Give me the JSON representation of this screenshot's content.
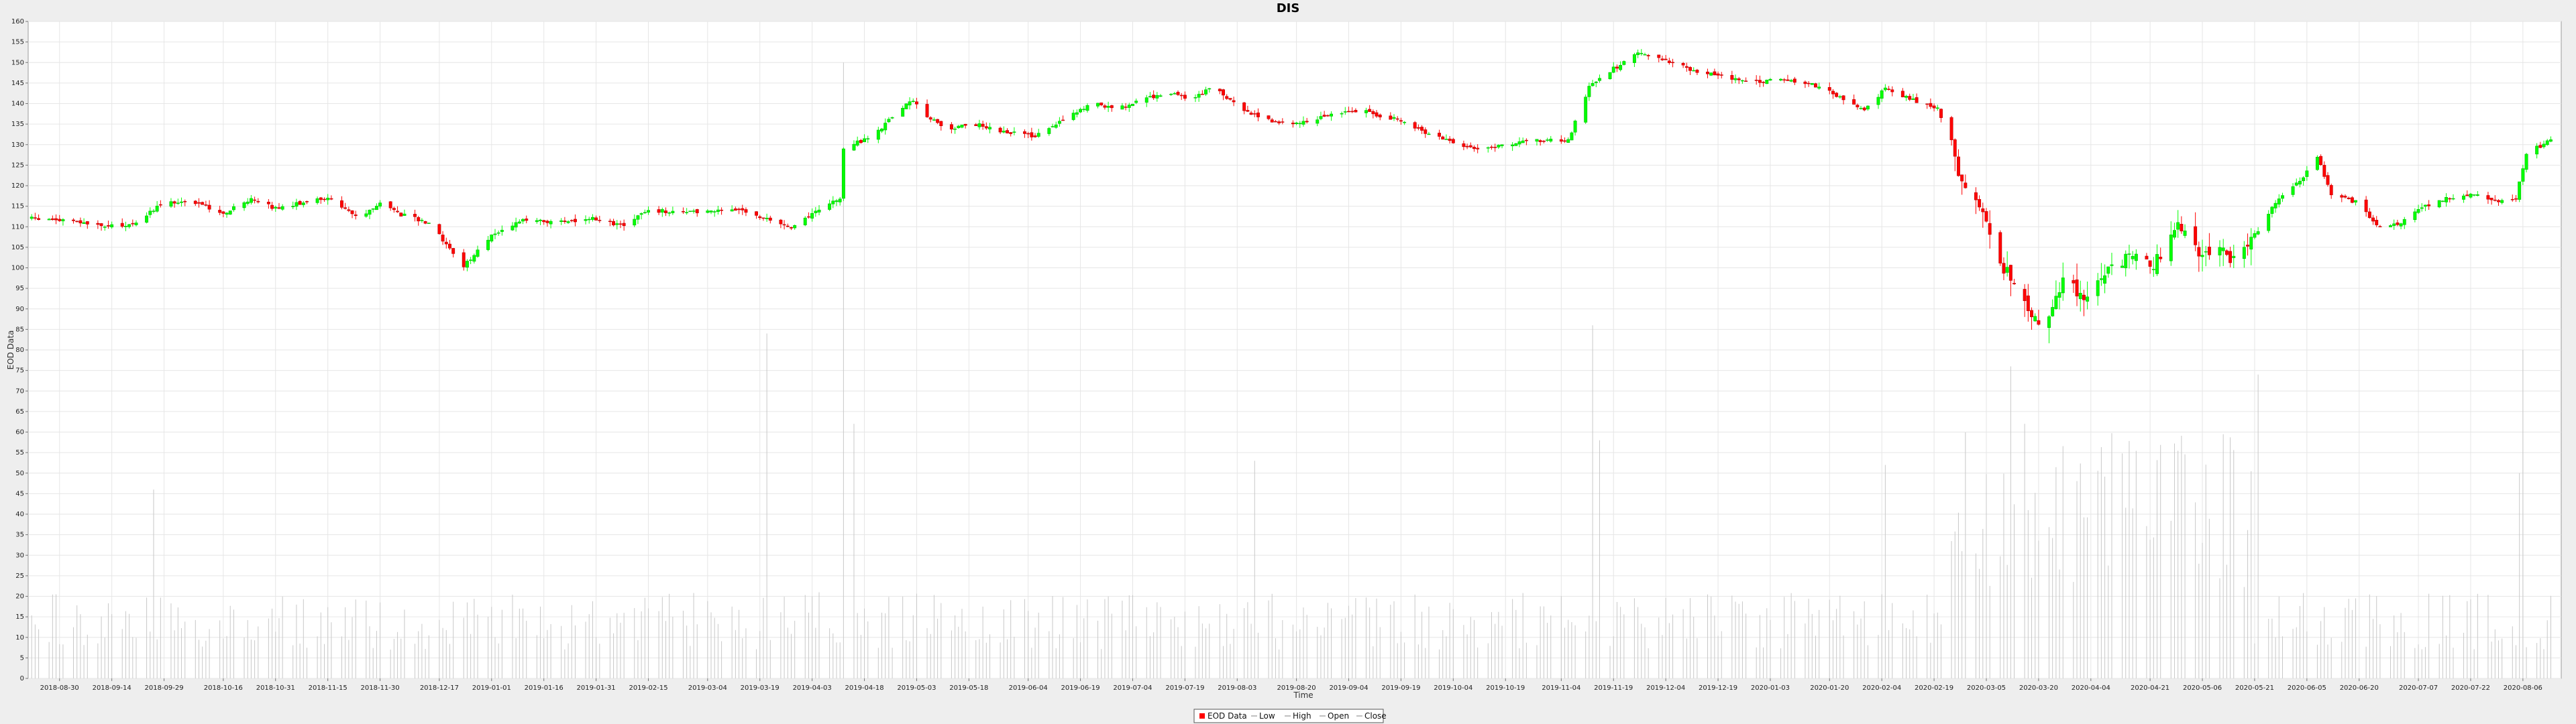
{
  "chart_data": {
    "type": "candlestick",
    "title": "DIS",
    "xlabel": "Time",
    "ylabel": "EOD Data",
    "ylim": [
      0,
      160
    ],
    "y_ticks": [
      0,
      5,
      10,
      15,
      20,
      25,
      30,
      35,
      40,
      45,
      50,
      55,
      60,
      65,
      70,
      75,
      80,
      85,
      90,
      95,
      100,
      105,
      110,
      115,
      120,
      125,
      130,
      135,
      140,
      145,
      150,
      155,
      160
    ],
    "xlim": [
      "2018-08-21",
      "2020-08-17"
    ],
    "x_ticks": [
      "2018-08-30",
      "2018-09-14",
      "2018-09-29",
      "2018-10-16",
      "2018-10-31",
      "2018-11-15",
      "2018-11-30",
      "2018-12-17",
      "2019-01-01",
      "2019-01-16",
      "2019-01-31",
      "2019-02-15",
      "2019-03-04",
      "2019-03-19",
      "2019-04-03",
      "2019-04-18",
      "2019-05-03",
      "2019-05-18",
      "2019-06-04",
      "2019-06-19",
      "2019-07-04",
      "2019-07-19",
      "2019-08-03",
      "2019-08-20",
      "2019-09-04",
      "2019-09-19",
      "2019-10-04",
      "2019-10-19",
      "2019-11-04",
      "2019-11-19",
      "2019-12-04",
      "2019-12-19",
      "2020-01-03",
      "2020-01-20",
      "2020-02-04",
      "2020-02-19",
      "2020-03-05",
      "2020-03-20",
      "2020-04-04",
      "2020-04-21",
      "2020-05-06",
      "2020-05-21",
      "2020-06-05",
      "2020-06-20",
      "2020-07-07",
      "2020-07-22",
      "2020-08-06"
    ],
    "close_anchors": [
      [
        "2018-08-22",
        112
      ],
      [
        "2018-09-01",
        111.5
      ],
      [
        "2018-09-12",
        110
      ],
      [
        "2018-09-20",
        110.5
      ],
      [
        "2018-09-29",
        116
      ],
      [
        "2018-10-08",
        116
      ],
      [
        "2018-10-16",
        113
      ],
      [
        "2018-10-24",
        117
      ],
      [
        "2018-10-31",
        114.5
      ],
      [
        "2018-11-15",
        117
      ],
      [
        "2018-11-24",
        112
      ],
      [
        "2018-11-30",
        116
      ],
      [
        "2018-12-06",
        113
      ],
      [
        "2018-12-14",
        111
      ],
      [
        "2018-12-24",
        100.5
      ],
      [
        "2019-01-01",
        108
      ],
      [
        "2019-01-10",
        111.5
      ],
      [
        "2019-01-20",
        111
      ],
      [
        "2019-01-31",
        112
      ],
      [
        "2019-02-08",
        110
      ],
      [
        "2019-02-15",
        114
      ],
      [
        "2019-02-28",
        113.5
      ],
      [
        "2019-03-14",
        114
      ],
      [
        "2019-03-20",
        112
      ],
      [
        "2019-03-28",
        110
      ],
      [
        "2019-04-05",
        114
      ],
      [
        "2019-04-11",
        117
      ],
      [
        "2019-04-12",
        129
      ],
      [
        "2019-04-20",
        132
      ],
      [
        "2019-04-28",
        138
      ],
      [
        "2019-05-02",
        141
      ],
      [
        "2019-05-07",
        136
      ],
      [
        "2019-05-13",
        134
      ],
      [
        "2019-05-20",
        135
      ],
      [
        "2019-05-29",
        133
      ],
      [
        "2019-06-06",
        132
      ],
      [
        "2019-06-14",
        136
      ],
      [
        "2019-06-22",
        140
      ],
      [
        "2019-06-30",
        139
      ],
      [
        "2019-07-08",
        141
      ],
      [
        "2019-07-14",
        143
      ],
      [
        "2019-07-21",
        141
      ],
      [
        "2019-07-27",
        144
      ],
      [
        "2019-08-02",
        140
      ],
      [
        "2019-08-08",
        137
      ],
      [
        "2019-08-16",
        135
      ],
      [
        "2019-08-24",
        136
      ],
      [
        "2019-09-01",
        138
      ],
      [
        "2019-09-09",
        138
      ],
      [
        "2019-09-18",
        136
      ],
      [
        "2019-09-26",
        133
      ],
      [
        "2019-10-06",
        130
      ],
      [
        "2019-10-12",
        129
      ],
      [
        "2019-10-20",
        130
      ],
      [
        "2019-10-28",
        131
      ],
      [
        "2019-11-06",
        131
      ],
      [
        "2019-11-12",
        144
      ],
      [
        "2019-11-18",
        148
      ],
      [
        "2019-11-26",
        152
      ],
      [
        "2019-12-03",
        151
      ],
      [
        "2019-12-12",
        148
      ],
      [
        "2019-12-20",
        147
      ],
      [
        "2019-12-28",
        145
      ],
      [
        "2020-01-06",
        146
      ],
      [
        "2020-01-14",
        145
      ],
      [
        "2020-01-22",
        142
      ],
      [
        "2020-01-30",
        138
      ],
      [
        "2020-02-05",
        144
      ],
      [
        "2020-02-12",
        141
      ],
      [
        "2020-02-20",
        139
      ],
      [
        "2020-02-24",
        130
      ],
      [
        "2020-02-28",
        118
      ],
      [
        "2020-03-05",
        112
      ],
      [
        "2020-03-10",
        100
      ],
      [
        "2020-03-16",
        92
      ],
      [
        "2020-03-19",
        88
      ],
      [
        "2020-03-23",
        87
      ],
      [
        "2020-03-27",
        97
      ],
      [
        "2020-04-02",
        93
      ],
      [
        "2020-04-09",
        100
      ],
      [
        "2020-04-16",
        103
      ],
      [
        "2020-04-22",
        101
      ],
      [
        "2020-04-29",
        110
      ],
      [
        "2020-05-05",
        103
      ],
      [
        "2020-05-11",
        104
      ],
      [
        "2020-05-15",
        102
      ],
      [
        "2020-05-21",
        108
      ],
      [
        "2020-05-28",
        117
      ],
      [
        "2020-06-04",
        122
      ],
      [
        "2020-06-08",
        127
      ],
      [
        "2020-06-12",
        118
      ],
      [
        "2020-06-19",
        116
      ],
      [
        "2020-06-26",
        110
      ],
      [
        "2020-07-02",
        111
      ],
      [
        "2020-07-09",
        115
      ],
      [
        "2020-07-15",
        117
      ],
      [
        "2020-07-22",
        118
      ],
      [
        "2020-07-29",
        116
      ],
      [
        "2020-08-04",
        117
      ],
      [
        "2020-08-07",
        128
      ],
      [
        "2020-08-14",
        131
      ]
    ],
    "volume_spikes": [
      [
        "2018-09-26",
        46
      ],
      [
        "2019-03-21",
        84
      ],
      [
        "2019-03-24",
        66
      ],
      [
        "2019-04-12",
        150
      ],
      [
        "2019-04-15",
        62
      ],
      [
        "2019-08-08",
        53
      ],
      [
        "2019-11-13",
        86
      ],
      [
        "2019-11-15",
        58
      ],
      [
        "2020-02-05",
        52
      ],
      [
        "2020-03-12",
        76
      ],
      [
        "2020-03-16",
        62
      ],
      [
        "2020-05-22",
        74
      ],
      [
        "2020-08-05",
        50
      ],
      [
        "2020-08-06",
        80
      ]
    ],
    "legend": [
      {
        "label": "EOD Data",
        "color": "#ff0000"
      },
      {
        "label": "Low",
        "color": "#aaaaaa"
      },
      {
        "label": "High",
        "color": "#aaaaaa"
      },
      {
        "label": "Open",
        "color": "#aaaaaa"
      },
      {
        "label": "Close",
        "color": "#aaaaaa"
      }
    ],
    "up_color": "#00ff00",
    "down_color": "#ff0000",
    "volume_color": "#c8c8c8",
    "legend_position": "bottom-center",
    "grid": true
  }
}
